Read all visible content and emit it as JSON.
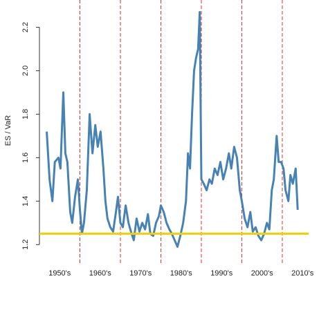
{
  "chart_data": {
    "type": "line",
    "ylabel": "ES / VaR",
    "x": [
      1951.8,
      1952.5,
      1953.2,
      1953.8,
      1954.7,
      1955.2,
      1955.9,
      1956.4,
      1956.9,
      1957.6,
      1958.1,
      1958.8,
      1959.5,
      1960,
      1960.5,
      1961,
      1961.7,
      1962.4,
      1963.1,
      1963.8,
      1964.4,
      1965.1,
      1965.8,
      1966.3,
      1966.8,
      1967.5,
      1968.2,
      1968.9,
      1969.4,
      1970,
      1970.6,
      1971.3,
      1972,
      1972.6,
      1973.3,
      1974,
      1974.7,
      1975.4,
      1976.1,
      1976.8,
      1977.4,
      1978.1,
      1978.8,
      1979.5,
      1980,
      1980.7,
      1981.4,
      1982.1,
      1982.7,
      1983.4,
      1984.1,
      1984.8,
      1985.5,
      1986.2,
      1986.7,
      1987.2,
      1987.7,
      1988.2,
      1988.7,
      1989.2,
      1989.6,
      1990,
      1990.6,
      1991.3,
      1992,
      1992.6,
      1993.3,
      1994,
      1994.7,
      1995.4,
      1996.1,
      1996.8,
      1997.4,
      1998.1,
      1998.8,
      1999.5,
      2000,
      2000.7,
      2001.4,
      2002.1,
      2002.7,
      2003.4,
      2004.1,
      2004.8,
      2005.5,
      2006.2,
      2006.8,
      2007.4,
      2007.9,
      2008.6,
      2009.1,
      2009.7,
      2010.3,
      2010.8,
      2011.5,
      2012,
      2012.6,
      2013.3,
      2013.8
    ],
    "series": [
      {
        "name": "ES / VaR",
        "color": "#4682b4",
        "values": [
          1.72,
          1.5,
          1.4,
          1.58,
          1.6,
          1.55,
          1.9,
          1.62,
          1.58,
          1.35,
          1.3,
          1.42,
          1.5,
          1.36,
          1.25,
          1.3,
          1.45,
          1.8,
          1.62,
          1.75,
          1.65,
          1.72,
          1.55,
          1.4,
          1.32,
          1.28,
          1.26,
          1.35,
          1.42,
          1.3,
          1.28,
          1.38,
          1.3,
          1.26,
          1.22,
          1.32,
          1.26,
          1.3,
          1.27,
          1.34,
          1.25,
          1.24,
          1.3,
          1.33,
          1.38,
          1.35,
          1.3,
          1.27,
          1.25,
          1.22,
          1.19,
          1.24,
          1.3,
          1.4,
          1.62,
          1.55,
          1.8,
          2.0,
          2.06,
          2.1,
          2.27,
          1.5,
          1.48,
          1.45,
          1.5,
          1.48,
          1.55,
          1.52,
          1.58,
          1.5,
          1.55,
          1.62,
          1.55,
          1.65,
          1.6,
          1.45,
          1.4,
          1.32,
          1.28,
          1.35,
          1.26,
          1.28,
          1.24,
          1.22,
          1.25,
          1.3,
          1.27,
          1.45,
          1.5,
          1.7,
          1.58,
          1.58,
          1.55,
          1.45,
          1.4,
          1.52,
          1.48,
          1.55,
          1.36
        ]
      }
    ],
    "xlim": [
      1950,
      2016.5
    ],
    "xticks": [
      {
        "value": 1955,
        "label": "1950's"
      },
      {
        "value": 1965,
        "label": "1960's"
      },
      {
        "value": 1975,
        "label": "1970's"
      },
      {
        "value": 1985,
        "label": "1980's"
      },
      {
        "value": 1995,
        "label": "1990's"
      },
      {
        "value": 2005,
        "label": "2000's"
      },
      {
        "value": 2015,
        "label": "2010's"
      }
    ],
    "ylim": [
      1.15,
      2.3
    ],
    "yticks": [
      1.2,
      1.4,
      1.6,
      1.8,
      {
        "value": 2,
        "label": "2.0"
      },
      2.2
    ],
    "vlines": [
      1960,
      1970,
      1980,
      1990,
      2000,
      2010
    ],
    "vline_color": "#e03030",
    "hline": 1.25,
    "hline_color": "#f5d000"
  }
}
